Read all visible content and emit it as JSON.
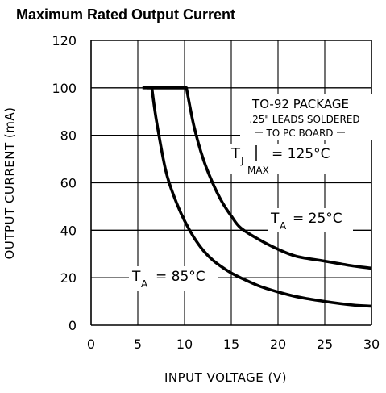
{
  "chart_data": {
    "type": "line",
    "title": "Maximum Rated Output Current",
    "xlabel": "INPUT VOLTAGE (V)",
    "ylabel": "OUTPUT CURRENT (mA)",
    "xlim": [
      0,
      30
    ],
    "ylim": [
      0,
      120
    ],
    "x_ticks": [
      "0",
      "5",
      "10",
      "15",
      "20",
      "25",
      "30"
    ],
    "y_ticks": [
      "0",
      "20",
      "40",
      "60",
      "80",
      "100",
      "120"
    ],
    "grid": true,
    "series": [
      {
        "name": "TA = 25°C",
        "x": [
          6,
          10.2,
          11,
          12,
          13,
          14,
          15,
          16,
          18,
          20,
          22,
          25,
          28,
          30
        ],
        "y": [
          100,
          100,
          84,
          70,
          60,
          52,
          46,
          41,
          36,
          32,
          29,
          27,
          25,
          24
        ]
      },
      {
        "name": "TA = 85°C",
        "x": [
          6.5,
          7,
          8,
          9,
          10,
          11,
          12,
          13,
          14,
          15,
          16,
          18,
          20,
          22,
          25,
          28,
          30
        ],
        "y": [
          100,
          86,
          65,
          53,
          44,
          37,
          31.5,
          27.5,
          24.5,
          22,
          20,
          16.5,
          14,
          12,
          10,
          8.5,
          8
        ]
      }
    ],
    "annotations": {
      "package_line1": "TO-92 PACKAGE",
      "package_line2": ".25\" LEADS SOLDERED",
      "package_line3": "TO PC BOARD",
      "tj_t": "T",
      "tj_sub_j": "J",
      "tj_sub_max": "MAX",
      "tj_value": "= 125°C",
      "ta25_t": "T",
      "ta25_sub": "A",
      "ta25_value": "= 25°C",
      "ta85_t": "T",
      "ta85_sub": "A",
      "ta85_value": "= 85°C"
    }
  }
}
